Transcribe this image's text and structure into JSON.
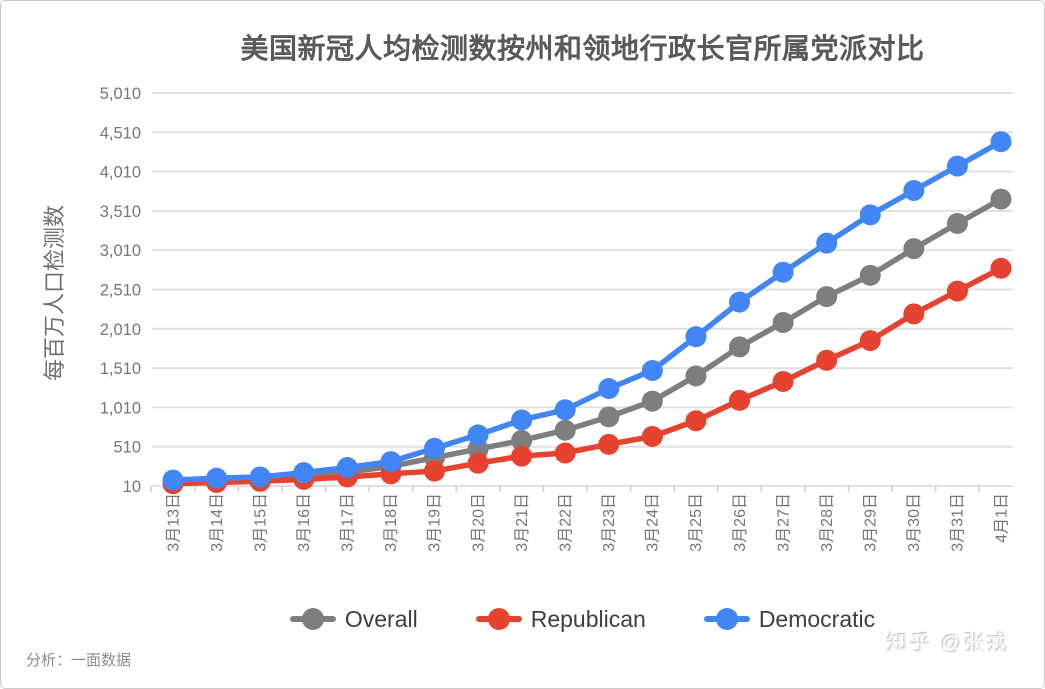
{
  "page": {
    "background": "#ffffff",
    "border_color": "#cbcbcb"
  },
  "chart_data": {
    "type": "line",
    "title": "美国新冠人均检测数按州和领地行政长官所属党派对比",
    "xlabel": "",
    "ylabel": "每百万人口检测数",
    "ylim": [
      10,
      5010
    ],
    "grid": true,
    "legend_position": "bottom",
    "ytick_values": [
      10,
      510,
      1010,
      1510,
      2010,
      2510,
      3010,
      3510,
      4010,
      4510,
      5010
    ],
    "ytick_labels": [
      "10",
      "510",
      "1,010",
      "1,510",
      "2,010",
      "2,510",
      "3,010",
      "3,510",
      "4,010",
      "4,510",
      "5,010"
    ],
    "categories": [
      "3月13日",
      "3月14日",
      "3月15日",
      "3月16日",
      "3月17日",
      "3月18日",
      "3月19日",
      "3月20日",
      "3月21日",
      "3月22日",
      "3月23日",
      "3月24日",
      "3月25日",
      "3月26日",
      "3月27日",
      "3月28日",
      "3月29日",
      "3月30日",
      "3月31日",
      "4月1日"
    ],
    "series": [
      {
        "name": "Overall",
        "color": "#7e7e7e",
        "values": [
          60,
          80,
          100,
          135,
          185,
          260,
          370,
          480,
          590,
          720,
          890,
          1090,
          1410,
          1780,
          2090,
          2420,
          2690,
          3030,
          3350,
          3660
        ]
      },
      {
        "name": "Republican",
        "color": "#e54330",
        "values": [
          40,
          55,
          70,
          95,
          125,
          165,
          200,
          300,
          390,
          430,
          540,
          640,
          840,
          1100,
          1340,
          1610,
          1860,
          2200,
          2490,
          2780
        ]
      },
      {
        "name": "Democratic",
        "color": "#4285f4",
        "values": [
          85,
          110,
          125,
          180,
          245,
          320,
          490,
          660,
          850,
          980,
          1250,
          1480,
          1910,
          2350,
          2730,
          3100,
          3460,
          3770,
          4080,
          4390
        ]
      }
    ],
    "gridline_color": "#e1e1e1",
    "tick_color": "#cfcfcf"
  },
  "footer": {
    "source_note": "分析：一面数据",
    "watermark": "知乎 @张戎"
  }
}
